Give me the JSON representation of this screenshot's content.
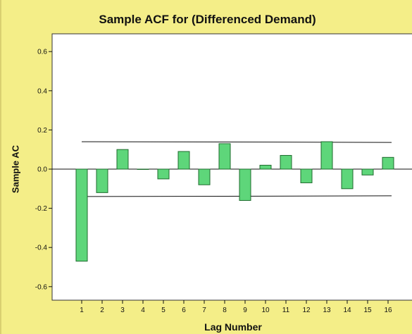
{
  "chart_data": {
    "type": "bar",
    "title": "Sample ACF for (Differenced Demand)",
    "xlabel": "Lag Number",
    "ylabel": "Sample AC",
    "categories": [
      "1",
      "2",
      "3",
      "4",
      "5",
      "6",
      "7",
      "8",
      "9",
      "10",
      "11",
      "12",
      "13",
      "14",
      "15",
      "16"
    ],
    "values": [
      -0.47,
      -0.12,
      0.1,
      0.0,
      -0.05,
      0.09,
      -0.08,
      0.13,
      -0.16,
      0.02,
      0.07,
      -0.07,
      0.14,
      -0.1,
      -0.03,
      0.06
    ],
    "confidence_limits": {
      "upper": 0.14,
      "lower": -0.14
    },
    "yticks": [
      "0.6",
      "0.4",
      "0.2",
      "0.0",
      "-0.2",
      "-0.4",
      "-0.6"
    ],
    "ylim": [
      -0.68,
      0.68
    ],
    "grid": false,
    "colors": {
      "bar_fill": "#5ed67a",
      "bar_stroke": "#1f6b2e",
      "background": "#f4ee88",
      "plot_bg": "#ffffff"
    }
  }
}
